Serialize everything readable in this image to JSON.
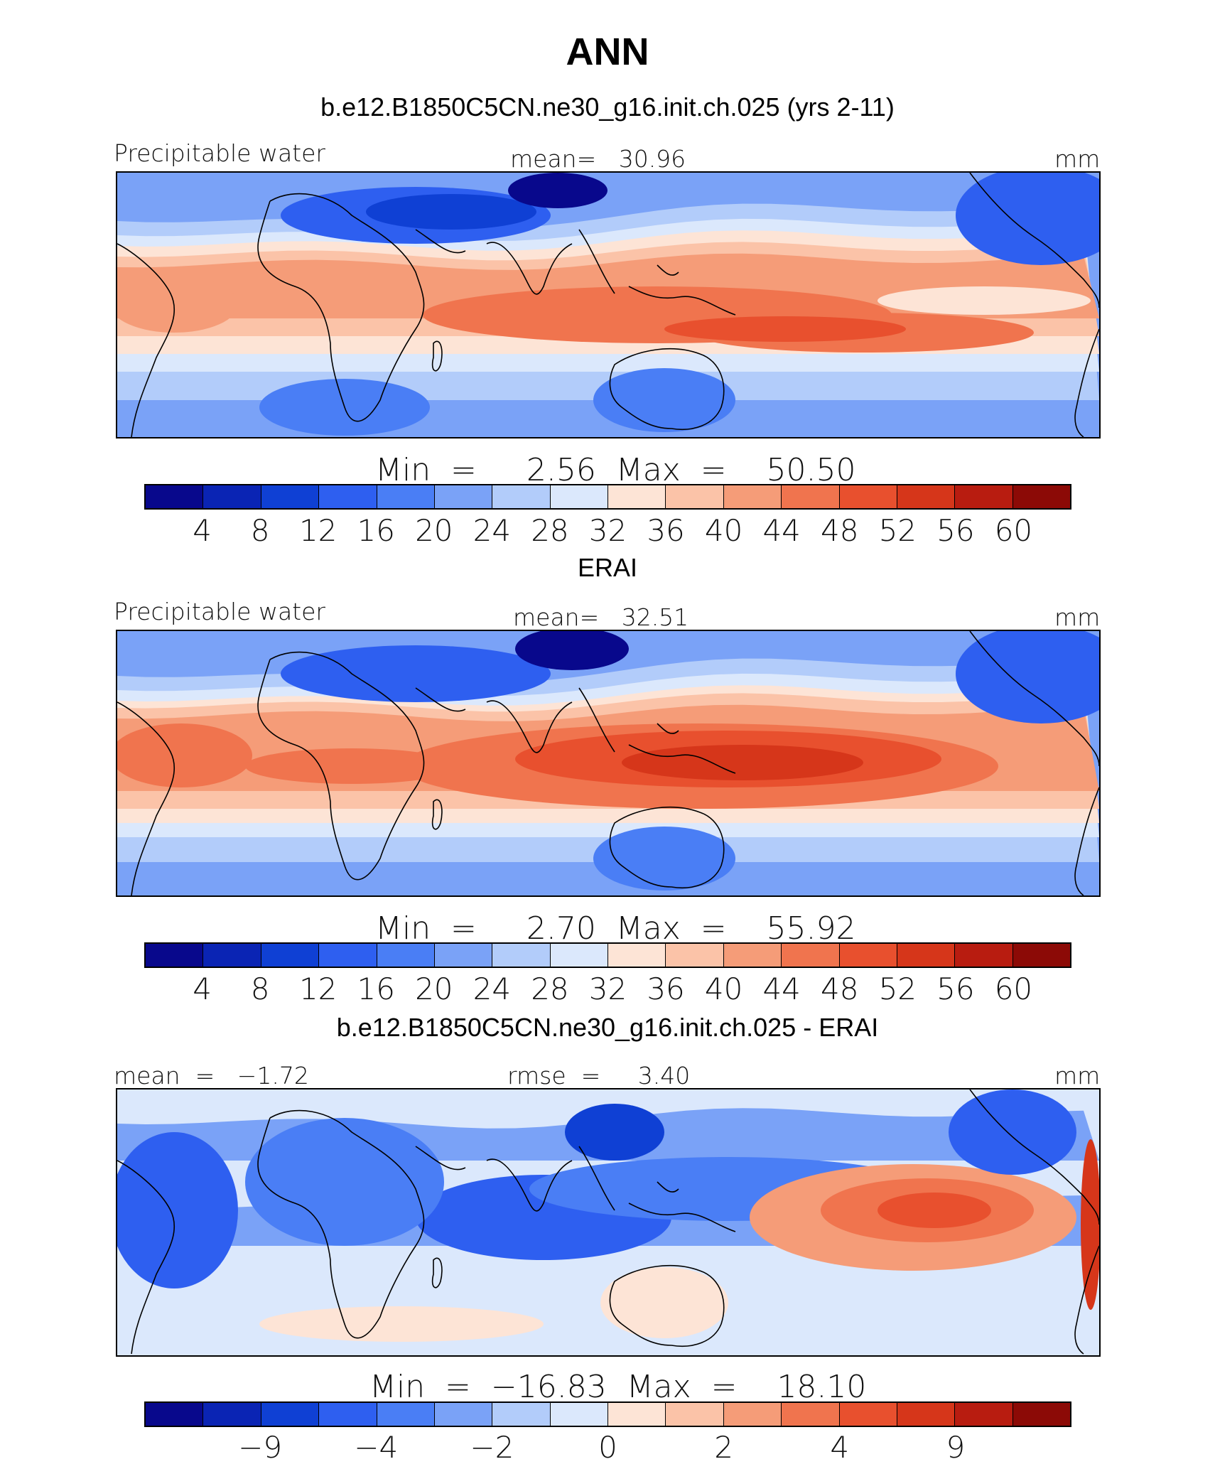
{
  "season": "ANN",
  "colors": [
    "#08088c",
    "#0a24b4",
    "#0f40d4",
    "#2e5ff0",
    "#4a7ef5",
    "#7aa2f7",
    "#b2ccfa",
    "#dbe8fc",
    "#fde4d6",
    "#fbc3a8",
    "#f59c78",
    "#f0744e",
    "#e8502e",
    "#d6361a",
    "#b81c10",
    "#8c0a06"
  ],
  "panels": [
    {
      "title": "b.e12.B1850C5CN.ne30_g16.init.ch.025 (yrs 2-11)",
      "left_label": "Precipitable water",
      "center_label": "mean=   30.96",
      "right_label": "mm",
      "minmax": "Min  =     2.56  Max  =    50.50",
      "ticks": [
        "4",
        "8",
        "12",
        "16",
        "20",
        "24",
        "28",
        "32",
        "36",
        "40",
        "44",
        "48",
        "52",
        "56",
        "60"
      ],
      "field": "model"
    },
    {
      "title": "ERAI",
      "left_label": "Precipitable water",
      "center_label": "mean=   32.51",
      "right_label": "mm",
      "minmax": "Min  =     2.70  Max  =    55.92",
      "ticks": [
        "4",
        "8",
        "12",
        "16",
        "20",
        "24",
        "28",
        "32",
        "36",
        "40",
        "44",
        "48",
        "52",
        "56",
        "60"
      ],
      "field": "obs"
    },
    {
      "title": "b.e12.B1850C5CN.ne30_g16.init.ch.025 - ERAI",
      "left_label": "mean  =   −1.72",
      "center_label": "rmse  =     3.40",
      "right_label": "mm",
      "minmax": "Min  =  −16.83  Max  =    18.10",
      "ticks": [
        "−9",
        "−4",
        "−2",
        "0",
        "2",
        "4",
        "9"
      ],
      "field": "diff"
    }
  ]
}
